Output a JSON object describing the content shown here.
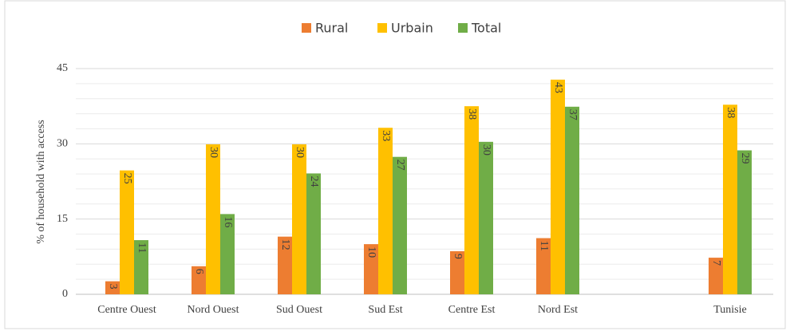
{
  "chart_data": {
    "type": "bar",
    "y_label": "% of household with access",
    "categories": [
      "Centre Ouest",
      "Nord Ouest",
      "Sud Ouest",
      "Sud Est",
      "Centre Est",
      "Nord Est",
      null,
      "Tunisie"
    ],
    "series": [
      {
        "name": "Rural",
        "color": "#ed7d31",
        "values": [
          2.6,
          5.6,
          11.5,
          10,
          8.6,
          11.2,
          null,
          7.3
        ],
        "value_labels": [
          "3",
          "6",
          "12",
          "10",
          "9",
          "11",
          null,
          "7"
        ]
      },
      {
        "name": "Urbain",
        "color": "#ffc000",
        "values": [
          24.7,
          29.9,
          29.9,
          33.2,
          37.5,
          42.8,
          null,
          37.8
        ],
        "value_labels": [
          "25",
          "30",
          "30",
          "33",
          "38",
          "43",
          null,
          "38"
        ]
      },
      {
        "name": "Total",
        "color": "#70ad47",
        "values": [
          10.8,
          16,
          24.1,
          27.4,
          30.4,
          37.4,
          null,
          28.7
        ],
        "value_labels": [
          "11",
          "16",
          "24",
          "27",
          "30",
          "37",
          null,
          "29"
        ]
      }
    ],
    "ylim": [
      0,
      45
    ],
    "yticks": [
      0,
      15,
      30,
      45
    ],
    "minor_yticks": [
      3,
      6,
      9,
      12,
      18,
      21,
      24,
      27,
      33,
      36,
      39,
      42
    ],
    "grid": true,
    "legend": "top"
  }
}
